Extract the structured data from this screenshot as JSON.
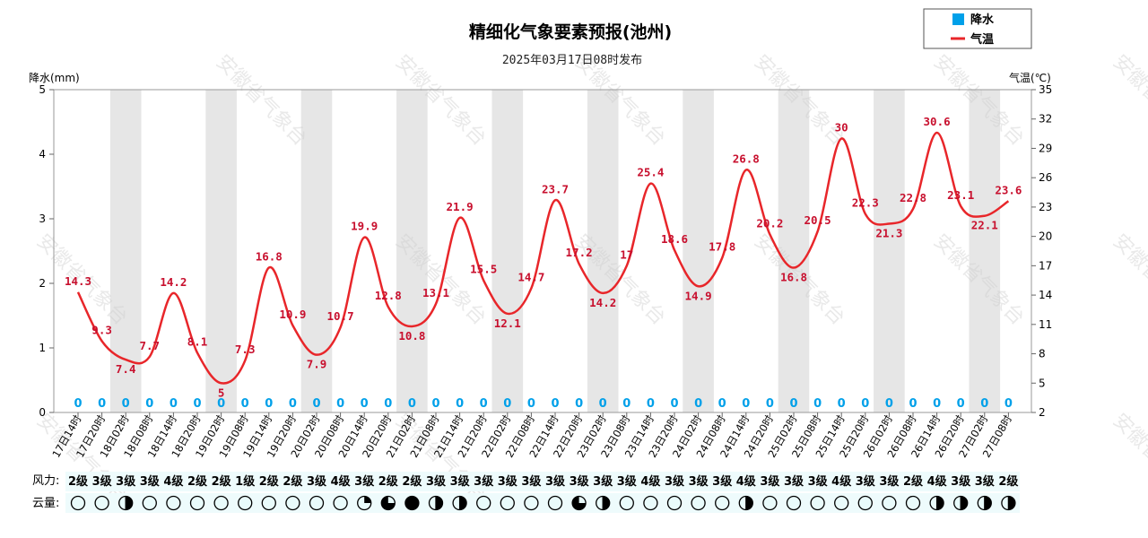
{
  "chart_data": {
    "type": "line",
    "title": "精细化气象要素预报(池州)",
    "subtitle": "2025年03月17日08时发布",
    "y_left_label": "降水(mm)",
    "y_right_label": "气温(℃)",
    "y_left_range": [
      0,
      5
    ],
    "y_left_ticks": [
      "0",
      "1",
      "2",
      "3",
      "4",
      "5"
    ],
    "y_right_range": [
      2,
      35
    ],
    "y_right_ticks": [
      "2",
      "5",
      "8",
      "11",
      "14",
      "17",
      "20",
      "23",
      "26",
      "29",
      "32",
      "35"
    ],
    "x": [
      "17日14时",
      "17日20时",
      "18日02时",
      "18日08时",
      "18日14时",
      "18日20时",
      "19日02时",
      "19日08时",
      "19日14时",
      "19日20时",
      "20日02时",
      "20日08时",
      "20日14时",
      "20日20时",
      "21日02时",
      "21日08时",
      "21日14时",
      "21日20时",
      "22日02时",
      "22日08时",
      "22日14时",
      "22日20时",
      "23日02时",
      "23日08时",
      "23日14时",
      "23日20时",
      "24日02时",
      "24日08时",
      "24日14时",
      "24日20时",
      "25日02时",
      "25日08时",
      "25日14时",
      "25日20时",
      "26日02时",
      "26日08时",
      "26日14时",
      "26日20时",
      "27日02时",
      "27日08时"
    ],
    "series": [
      {
        "name": "降水",
        "type": "bar",
        "axis": "left",
        "color": "#00a0e9",
        "values": [
          0,
          0,
          0,
          0,
          0,
          0,
          0,
          0,
          0,
          0,
          0,
          0,
          0,
          0,
          0,
          0,
          0,
          0,
          0,
          0,
          0,
          0,
          0,
          0,
          0,
          0,
          0,
          0,
          0,
          0,
          0,
          0,
          0,
          0,
          0,
          0,
          0,
          0,
          0,
          0
        ],
        "labels": [
          "0",
          "0",
          "0",
          "0",
          "0",
          "0",
          "0",
          "0",
          "0",
          "0",
          "0",
          "0",
          "0",
          "0",
          "0",
          "0",
          "0",
          "0",
          "0",
          "0",
          "0",
          "0",
          "0",
          "0",
          "0",
          "0",
          "0",
          "0",
          "0",
          "0",
          "0",
          "0",
          "0",
          "0",
          "0",
          "0",
          "0",
          "0",
          "0",
          "0"
        ]
      },
      {
        "name": "气温",
        "type": "line",
        "axis": "right",
        "color": "#e8262a",
        "values": [
          14.3,
          9.3,
          7.4,
          7.7,
          14.2,
          8.1,
          5,
          7.3,
          16.8,
          10.9,
          7.9,
          10.7,
          19.9,
          12.8,
          10.8,
          13.1,
          21.9,
          15.5,
          12.1,
          14.7,
          23.7,
          17.2,
          14.2,
          17,
          25.4,
          18.6,
          14.9,
          17.8,
          26.8,
          20.2,
          16.8,
          20.5,
          30,
          22.3,
          21.3,
          22.8,
          30.6,
          23.1,
          22.1,
          23.6
        ],
        "labels": [
          "14.3",
          "9.3",
          "7.4",
          "7.7",
          "14.2",
          "8.1",
          "5",
          "7.3",
          "16.8",
          "10.9",
          "7.9",
          "10.7",
          "19.9",
          "12.8",
          "10.8",
          "13.1",
          "21.9",
          "15.5",
          "12.1",
          "14.7",
          "23.7",
          "17.2",
          "14.2",
          "17",
          "25.4",
          "18.6",
          "14.9",
          "17.8",
          "26.8",
          "20.2",
          "16.8",
          "20.5",
          "30",
          "22.3",
          "21.3",
          "22.8",
          "30.6",
          "23.1",
          "22.1",
          "23.6"
        ]
      }
    ],
    "legend": {
      "placement": "top-right",
      "items": [
        "降水",
        "气温"
      ]
    },
    "wind_label": "风力:",
    "wind": [
      "2级",
      "3级",
      "3级",
      "3级",
      "4级",
      "2级",
      "2级",
      "1级",
      "2级",
      "2级",
      "3级",
      "4级",
      "3级",
      "2级",
      "2级",
      "3级",
      "3级",
      "3级",
      "3级",
      "3级",
      "3级",
      "3级",
      "3级",
      "3级",
      "4级",
      "3级",
      "3级",
      "3级",
      "4级",
      "3级",
      "3级",
      "3级",
      "4级",
      "3级",
      "3级",
      "2级",
      "4级",
      "3级",
      "3级",
      "2级"
    ],
    "cloud_label": "云量:",
    "cloud": [
      0,
      0,
      0.5,
      0,
      0,
      0,
      0,
      0,
      0,
      0,
      0,
      0,
      0.25,
      0.75,
      1,
      0.5,
      0.5,
      0,
      0,
      0,
      0,
      0.75,
      0.5,
      0,
      0,
      0,
      0,
      0,
      0.5,
      0,
      0,
      0,
      0,
      0,
      0,
      0,
      0.5,
      0.5,
      0.5,
      0.5
    ],
    "night_shading": true,
    "grid": false,
    "watermark": "安徽省气象台"
  }
}
